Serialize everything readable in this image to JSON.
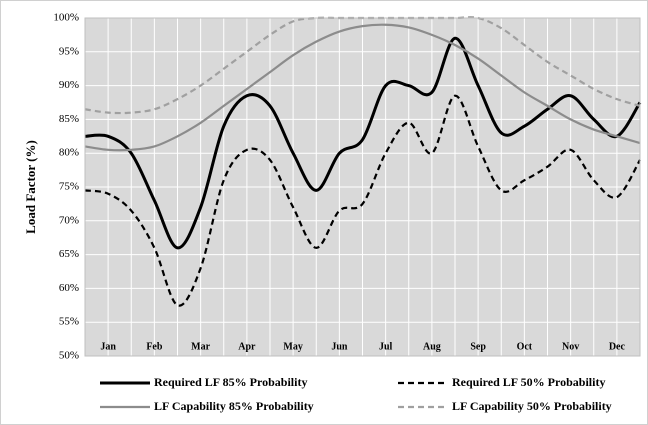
{
  "chart_data": {
    "type": "line",
    "y_label": "Load Factor (%)",
    "x": [
      0,
      0.5,
      1,
      1.5,
      2,
      2.5,
      3,
      3.5,
      4,
      4.5,
      5,
      5.5,
      6,
      6.5,
      7,
      7.5,
      8,
      8.5,
      9,
      9.5,
      10,
      10.5,
      11,
      11.5,
      12
    ],
    "xlim": [
      0,
      12
    ],
    "xticks": [
      {
        "value": 0.5,
        "label": "Jan"
      },
      {
        "value": 1.5,
        "label": "Feb"
      },
      {
        "value": 2.5,
        "label": "Mar"
      },
      {
        "value": 3.5,
        "label": "Apr"
      },
      {
        "value": 4.5,
        "label": "May"
      },
      {
        "value": 5.5,
        "label": "Jun"
      },
      {
        "value": 6.5,
        "label": "Jul"
      },
      {
        "value": 7.5,
        "label": "Aug"
      },
      {
        "value": 8.5,
        "label": "Sep"
      },
      {
        "value": 9.5,
        "label": "Oct"
      },
      {
        "value": 10.5,
        "label": "Nov"
      },
      {
        "value": 11.5,
        "label": "Dec"
      }
    ],
    "ylim": [
      50,
      100
    ],
    "yticks": [
      {
        "value": 50,
        "label": "50%"
      },
      {
        "value": 55,
        "label": "55%"
      },
      {
        "value": 60,
        "label": "60%"
      },
      {
        "value": 65,
        "label": "65%"
      },
      {
        "value": 70,
        "label": "70%"
      },
      {
        "value": 75,
        "label": "75%"
      },
      {
        "value": 80,
        "label": "80%"
      },
      {
        "value": 85,
        "label": "85%"
      },
      {
        "value": 90,
        "label": "90%"
      },
      {
        "value": 95,
        "label": "95%"
      },
      {
        "value": 100,
        "label": "100%"
      }
    ],
    "grid": true,
    "legend": "bottom",
    "series": [
      {
        "name": "Required LF 85% Probability",
        "color": "#000000",
        "dash": false,
        "values": [
          82.5,
          82.5,
          80,
          73,
          66,
          72,
          84,
          88.5,
          87,
          80,
          74.5,
          80,
          82,
          90,
          90,
          89,
          97,
          90,
          83,
          84,
          86.5,
          88.5,
          85,
          82.5,
          87.5
        ]
      },
      {
        "name": "Required LF 50% Probability",
        "color": "#000000",
        "dash": true,
        "values": [
          74.5,
          74,
          71.5,
          66,
          57.5,
          63,
          76,
          80.5,
          79,
          72,
          66,
          71.5,
          72.5,
          80,
          84.5,
          80,
          88.5,
          81,
          74.5,
          76,
          78,
          80.5,
          76,
          73.5,
          79
        ]
      },
      {
        "name": "LF Capability 85% Probability",
        "color": "#8c8c8c",
        "dash": false,
        "values": [
          81,
          80.5,
          80.5,
          81,
          82.5,
          84.5,
          87,
          89.5,
          92,
          94.5,
          96.5,
          98,
          98.8,
          99,
          98.6,
          97.5,
          96,
          94,
          91.5,
          89,
          87,
          85,
          83.5,
          82.5,
          81.5
        ]
      },
      {
        "name": "LF Capability 50% Probability",
        "color": "#a0a0a0",
        "dash": true,
        "values": [
          86.5,
          86,
          86,
          86.5,
          88,
          90,
          92.5,
          95,
          97.5,
          99.5,
          100,
          100,
          100,
          100,
          100,
          100,
          100,
          100,
          98.5,
          96,
          93.5,
          91.5,
          89.5,
          88,
          87
        ]
      }
    ]
  }
}
